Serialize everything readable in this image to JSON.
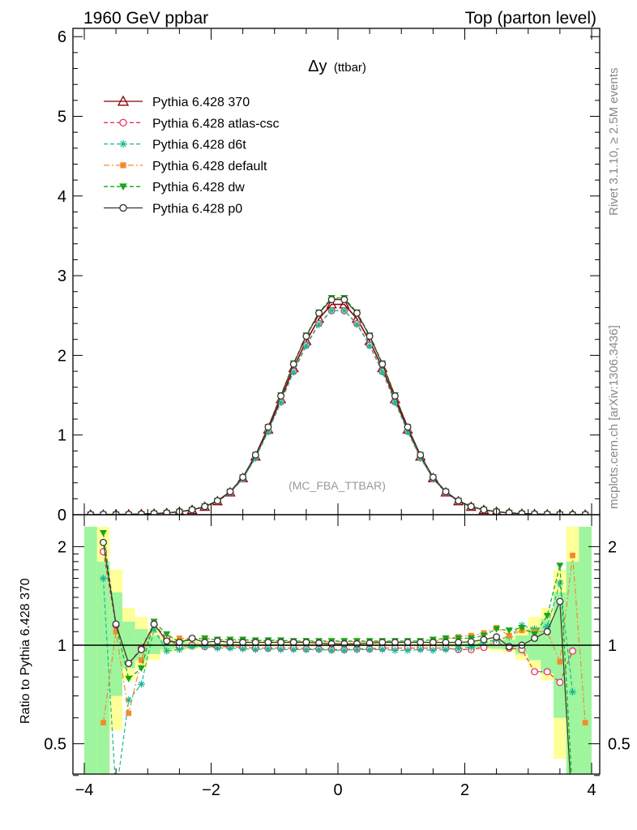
{
  "header": {
    "left": "1960 GeV ppbar",
    "right": "Top (parton level)"
  },
  "side_labels": {
    "rivet": "Rivet 3.1.10, ≥ 2.5M events",
    "mcplots": "mcplots.cern.ch [arXiv:1306.3436]"
  },
  "chart_data": [
    {
      "type": "scatter",
      "title": "Δy",
      "title_suffix": "(ttbar)",
      "watermark": "(MC_FBA_TTBAR)",
      "xlim": [
        -4.2,
        4.2
      ],
      "ylim": [
        0,
        6.1
      ],
      "yticks": [
        0,
        1,
        2,
        3,
        4,
        5,
        6
      ],
      "ytick_labels": [
        "0",
        "1",
        "2",
        "3",
        "4",
        "5",
        "6"
      ],
      "legend_position": "top-left",
      "x": [
        -3.9,
        -3.7,
        -3.5,
        -3.3,
        -3.1,
        -2.9,
        -2.7,
        -2.5,
        -2.3,
        -2.1,
        -1.9,
        -1.7,
        -1.5,
        -1.3,
        -1.1,
        -0.9,
        -0.7,
        -0.5,
        -0.3,
        -0.1,
        0.1,
        0.3,
        0.5,
        0.7,
        0.9,
        1.1,
        1.3,
        1.5,
        1.7,
        1.9,
        2.1,
        2.3,
        2.5,
        2.7,
        2.9,
        3.1,
        3.3,
        3.5,
        3.7,
        3.9
      ],
      "series": [
        {
          "name": "Pythia 6.428 370",
          "color": "#8b0000",
          "marker": "triangle-open",
          "line": "solid",
          "values": [
            0.002,
            0.002,
            0.003,
            0.005,
            0.008,
            0.013,
            0.022,
            0.037,
            0.06,
            0.1,
            0.17,
            0.28,
            0.46,
            0.73,
            1.07,
            1.45,
            1.84,
            2.18,
            2.46,
            2.64,
            2.64,
            2.46,
            2.18,
            1.84,
            1.45,
            1.07,
            0.73,
            0.46,
            0.28,
            0.17,
            0.1,
            0.06,
            0.037,
            0.022,
            0.013,
            0.008,
            0.005,
            0.003,
            0.002,
            0.002
          ]
        },
        {
          "name": "Pythia 6.428 atlas-csc",
          "color": "#e8335a",
          "marker": "circle-open",
          "line": "dashed",
          "values": [
            0.003,
            0.004,
            0.004,
            0.004,
            0.009,
            0.015,
            0.023,
            0.037,
            0.06,
            0.1,
            0.17,
            0.28,
            0.45,
            0.72,
            1.05,
            1.42,
            1.8,
            2.13,
            2.4,
            2.56,
            2.56,
            2.4,
            2.13,
            1.8,
            1.42,
            1.05,
            0.72,
            0.45,
            0.28,
            0.17,
            0.1,
            0.059,
            0.038,
            0.022,
            0.013,
            0.007,
            0.004,
            0.003,
            0.002,
            0.002
          ]
        },
        {
          "name": "Pythia 6.428 d6t",
          "color": "#18b894",
          "marker": "star",
          "line": "dashed",
          "values": [
            0.003,
            0.003,
            0.003,
            0.004,
            0.006,
            0.015,
            0.021,
            0.036,
            0.06,
            0.1,
            0.17,
            0.28,
            0.45,
            0.71,
            1.04,
            1.41,
            1.79,
            2.12,
            2.39,
            2.56,
            2.56,
            2.39,
            2.12,
            1.79,
            1.41,
            1.04,
            0.71,
            0.45,
            0.28,
            0.17,
            0.1,
            0.06,
            0.038,
            0.024,
            0.015,
            0.009,
            0.006,
            0.005,
            0.001,
            0.002
          ]
        },
        {
          "name": "Pythia 6.428 default",
          "color": "#f58a2a",
          "marker": "square",
          "line": "dashdot",
          "values": [
            0.001,
            0.001,
            0.002,
            0.003,
            0.007,
            0.015,
            0.022,
            0.038,
            0.062,
            0.104,
            0.176,
            0.29,
            0.47,
            0.75,
            1.1,
            1.49,
            1.89,
            2.24,
            2.53,
            2.71,
            2.71,
            2.53,
            2.24,
            1.89,
            1.49,
            1.1,
            0.75,
            0.47,
            0.29,
            0.176,
            0.104,
            0.062,
            0.04,
            0.025,
            0.015,
            0.009,
            0.005,
            0.003,
            0.004,
            0.001
          ]
        },
        {
          "name": "Pythia 6.428 dw",
          "color": "#14a814",
          "marker": "triangle-down",
          "line": "dashed",
          "values": [
            0.003,
            0.004,
            0.003,
            0.004,
            0.007,
            0.015,
            0.023,
            0.038,
            0.062,
            0.104,
            0.176,
            0.29,
            0.47,
            0.75,
            1.1,
            1.5,
            1.9,
            2.25,
            2.54,
            2.72,
            2.72,
            2.54,
            2.25,
            1.9,
            1.5,
            1.1,
            0.75,
            0.47,
            0.29,
            0.176,
            0.104,
            0.063,
            0.04,
            0.026,
            0.016,
            0.009,
            0.006,
            0.005,
            0.002,
            0.002
          ]
        },
        {
          "name": "Pythia 6.428 p0",
          "color": "#333333",
          "marker": "circle-open",
          "line": "solid",
          "values": [
            0.003,
            0.004,
            0.003,
            0.004,
            0.008,
            0.015,
            0.022,
            0.038,
            0.062,
            0.103,
            0.175,
            0.29,
            0.47,
            0.75,
            1.1,
            1.49,
            1.89,
            2.24,
            2.53,
            2.7,
            2.7,
            2.53,
            2.24,
            1.89,
            1.49,
            1.1,
            0.75,
            0.47,
            0.29,
            0.175,
            0.103,
            0.062,
            0.039,
            0.022,
            0.013,
            0.008,
            0.006,
            0.004,
            0.001,
            0.002
          ]
        }
      ]
    },
    {
      "type": "scatter",
      "ylabel": "Ratio to Pythia 6.428 370",
      "xlim": [
        -4.2,
        4.2
      ],
      "ylim": [
        0.35,
        2.3
      ],
      "xticks": [
        -4,
        -2,
        0,
        2,
        4
      ],
      "xtick_labels": [
        "−4",
        "−2",
        "0",
        "2",
        "4"
      ],
      "yticks": [
        0.5,
        1,
        2
      ],
      "ytick_labels": [
        "0.5",
        "1",
        "2"
      ],
      "reference_line": 1,
      "x": [
        -3.9,
        -3.7,
        -3.5,
        -3.3,
        -3.1,
        -2.9,
        -2.7,
        -2.5,
        -2.3,
        -2.1,
        -1.9,
        -1.7,
        -1.5,
        -1.3,
        -1.1,
        -0.9,
        -0.7,
        -0.5,
        -0.3,
        -0.1,
        0.1,
        0.3,
        0.5,
        0.7,
        0.9,
        1.1,
        1.3,
        1.5,
        1.7,
        1.9,
        2.1,
        2.3,
        2.5,
        2.7,
        2.9,
        3.1,
        3.3,
        3.5,
        3.7,
        3.9
      ],
      "band_yellow": [
        [
          0.3,
          2.3
        ],
        [
          0.3,
          2.3
        ],
        [
          0.55,
          1.7
        ],
        [
          0.78,
          1.3
        ],
        [
          0.85,
          1.22
        ],
        [
          0.9,
          1.13
        ],
        [
          0.95,
          1.07
        ],
        [
          0.96,
          1.05
        ],
        [
          0.97,
          1.04
        ],
        [
          0.98,
          1.03
        ],
        [
          0.985,
          1.02
        ],
        [
          0.985,
          1.02
        ],
        [
          0.985,
          1.015
        ],
        [
          0.99,
          1.012
        ],
        [
          0.99,
          1.012
        ],
        [
          0.99,
          1.012
        ],
        [
          0.99,
          1.012
        ],
        [
          0.99,
          1.012
        ],
        [
          0.99,
          1.012
        ],
        [
          0.99,
          1.012
        ],
        [
          0.99,
          1.012
        ],
        [
          0.99,
          1.012
        ],
        [
          0.99,
          1.012
        ],
        [
          0.99,
          1.012
        ],
        [
          0.99,
          1.012
        ],
        [
          0.99,
          1.012
        ],
        [
          0.99,
          1.012
        ],
        [
          0.985,
          1.015
        ],
        [
          0.985,
          1.02
        ],
        [
          0.985,
          1.02
        ],
        [
          0.98,
          1.03
        ],
        [
          0.97,
          1.04
        ],
        [
          0.96,
          1.05
        ],
        [
          0.95,
          1.07
        ],
        [
          0.9,
          1.13
        ],
        [
          0.85,
          1.22
        ],
        [
          0.78,
          1.3
        ],
        [
          0.45,
          1.7
        ],
        [
          0.3,
          2.3
        ],
        [
          0.3,
          2.3
        ]
      ],
      "band_green": [
        [
          0.3,
          2.3
        ],
        [
          0.3,
          1.8
        ],
        [
          0.7,
          1.45
        ],
        [
          0.85,
          1.18
        ],
        [
          0.9,
          1.12
        ],
        [
          0.94,
          1.07
        ],
        [
          0.97,
          1.04
        ],
        [
          0.975,
          1.03
        ],
        [
          0.98,
          1.02
        ],
        [
          0.985,
          1.015
        ],
        [
          0.99,
          1.01
        ],
        [
          0.99,
          1.01
        ],
        [
          0.992,
          1.008
        ],
        [
          0.994,
          1.006
        ],
        [
          0.994,
          1.006
        ],
        [
          0.994,
          1.006
        ],
        [
          0.994,
          1.006
        ],
        [
          0.994,
          1.006
        ],
        [
          0.994,
          1.006
        ],
        [
          0.994,
          1.006
        ],
        [
          0.994,
          1.006
        ],
        [
          0.994,
          1.006
        ],
        [
          0.994,
          1.006
        ],
        [
          0.994,
          1.006
        ],
        [
          0.994,
          1.006
        ],
        [
          0.994,
          1.006
        ],
        [
          0.994,
          1.006
        ],
        [
          0.992,
          1.008
        ],
        [
          0.99,
          1.01
        ],
        [
          0.99,
          1.01
        ],
        [
          0.985,
          1.015
        ],
        [
          0.98,
          1.02
        ],
        [
          0.975,
          1.03
        ],
        [
          0.97,
          1.04
        ],
        [
          0.94,
          1.07
        ],
        [
          0.9,
          1.12
        ],
        [
          0.82,
          1.2
        ],
        [
          0.6,
          1.45
        ],
        [
          0.3,
          1.8
        ],
        [
          0.3,
          2.3
        ]
      ],
      "series": [
        {
          "name": "Pythia 6.428 atlas-csc",
          "color": "#e8335a",
          "marker": "circle-open",
          "line": "dashed",
          "values": [
            null,
            1.93,
            1.15,
            0.88,
            0.98,
            1.16,
            1.05,
            0.99,
            1.0,
            0.99,
            0.99,
            0.99,
            0.985,
            0.98,
            0.98,
            0.98,
            0.98,
            0.975,
            0.975,
            0.97,
            0.97,
            0.975,
            0.975,
            0.98,
            0.98,
            0.98,
            0.98,
            0.98,
            0.98,
            0.97,
            0.97,
            0.985,
            1.02,
            0.98,
            0.97,
            0.83,
            0.83,
            0.77,
            0.96,
            null
          ]
        },
        {
          "name": "Pythia 6.428 d6t",
          "color": "#18b894",
          "marker": "star",
          "line": "dashed",
          "values": [
            null,
            1.6,
            0.35,
            0.68,
            0.76,
            1.12,
            0.96,
            0.97,
            0.99,
            0.99,
            0.98,
            0.98,
            0.975,
            0.97,
            0.975,
            0.97,
            0.97,
            0.97,
            0.97,
            0.965,
            0.965,
            0.97,
            0.97,
            0.97,
            0.965,
            0.965,
            0.97,
            0.965,
            0.97,
            0.975,
            0.985,
            1.02,
            1.04,
            1.06,
            1.15,
            1.12,
            1.14,
            1.55,
            0.72,
            null
          ]
        },
        {
          "name": "Pythia 6.428 default",
          "color": "#f58a2a",
          "marker": "square",
          "line": "dashdot",
          "values": [
            null,
            0.58,
            1.1,
            0.62,
            0.9,
            1.17,
            1.02,
            1.05,
            1.05,
            1.05,
            1.03,
            1.03,
            1.03,
            1.03,
            1.03,
            1.03,
            1.025,
            1.025,
            1.025,
            1.025,
            1.025,
            1.025,
            1.025,
            1.025,
            1.025,
            1.02,
            1.02,
            1.025,
            1.05,
            1.06,
            1.07,
            1.09,
            1.13,
            1.07,
            1.11,
            1.1,
            1.1,
            0.89,
            1.88,
            0.58
          ]
        },
        {
          "name": "Pythia 6.428 dw",
          "color": "#14a814",
          "marker": "triangle-down",
          "line": "dashed",
          "values": [
            null,
            2.2,
            1.15,
            0.79,
            0.85,
            1.18,
            1.08,
            1.02,
            1.04,
            1.05,
            1.04,
            1.04,
            1.04,
            1.035,
            1.035,
            1.035,
            1.03,
            1.03,
            1.03,
            1.03,
            1.03,
            1.03,
            1.03,
            1.03,
            1.03,
            1.03,
            1.03,
            1.04,
            1.05,
            1.05,
            1.05,
            1.07,
            1.12,
            1.11,
            1.13,
            1.08,
            1.23,
            1.75,
            0.35,
            null
          ]
        },
        {
          "name": "Pythia 6.428 p0",
          "color": "#333333",
          "marker": "circle-open",
          "line": "solid",
          "values": [
            null,
            2.06,
            1.16,
            0.88,
            0.97,
            1.16,
            1.03,
            1.02,
            1.05,
            1.02,
            1.03,
            1.02,
            1.02,
            1.02,
            1.02,
            1.02,
            1.02,
            1.02,
            1.015,
            1.01,
            1.01,
            1.01,
            1.015,
            1.02,
            1.02,
            1.02,
            1.02,
            1.02,
            1.02,
            1.02,
            1.025,
            1.04,
            1.06,
            0.99,
            1.0,
            1.05,
            1.1,
            1.36,
            0.3,
            null
          ]
        }
      ]
    }
  ]
}
